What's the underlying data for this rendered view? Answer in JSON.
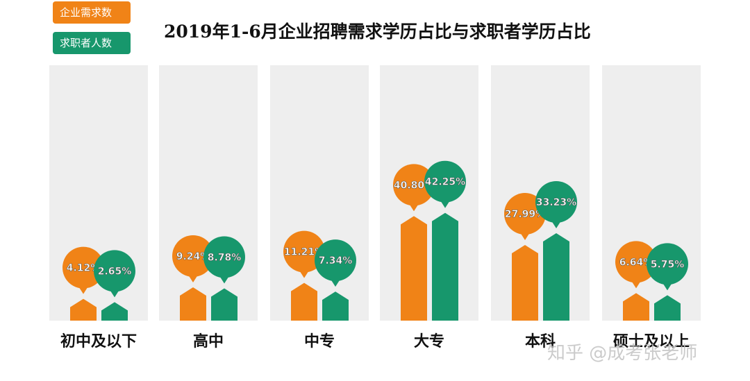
{
  "colors": {
    "demand": "#f08317",
    "seekers": "#17976c",
    "column_bg": "#eeeeee"
  },
  "watermark": "知乎 @成考张老师",
  "chart_data": {
    "type": "bar",
    "title": "2019年1-6月企业招聘需求学历占比与求职者学历占比",
    "xlabel": "",
    "ylabel": "",
    "legend_position": "top-left",
    "grid": false,
    "unit": "%",
    "ylim": [
      0,
      50
    ],
    "categories": [
      "初中及以下",
      "高中",
      "中专",
      "大专",
      "本科",
      "硕士及以上"
    ],
    "series": [
      {
        "name": "企业需求数",
        "values": [
          4.12,
          9.24,
          11.21,
          40.8,
          27.99,
          6.64
        ],
        "labels": [
          "4.12%",
          "9.24%",
          "11.21%",
          "40.80%",
          "27.99%",
          "6.64%"
        ]
      },
      {
        "name": "求职者人数",
        "values": [
          2.65,
          8.78,
          7.34,
          42.25,
          33.23,
          5.75
        ],
        "labels": [
          "2.65%",
          "8.78%",
          "7.34%",
          "42.25%",
          "33.23%",
          "5.75%"
        ]
      }
    ]
  }
}
